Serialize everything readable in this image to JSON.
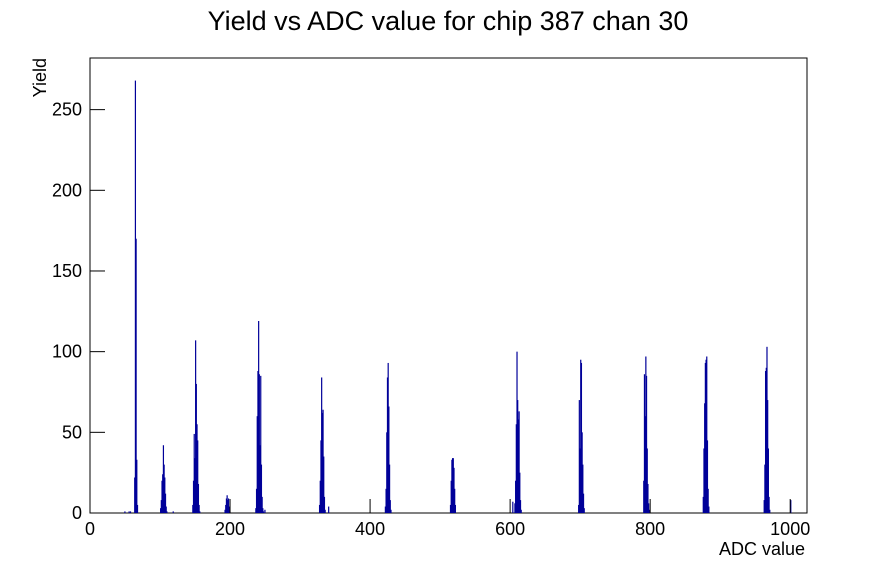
{
  "chart_data": {
    "type": "bar",
    "title": "Yield vs ADC value for chip 387 chan 30",
    "x_label": "ADC value",
    "y_label": "Yield",
    "color": "#000099",
    "xlim": [
      0,
      1024
    ],
    "xticks": [
      0,
      200,
      400,
      600,
      800,
      1000
    ],
    "ylim": [
      0,
      282
    ],
    "yticks": [
      0,
      50,
      100,
      150,
      200,
      250
    ],
    "x": [
      49,
      55,
      57,
      63,
      64,
      65,
      66,
      67,
      100,
      101,
      102,
      103,
      104,
      105,
      106,
      107,
      108,
      109,
      118,
      146,
      147,
      148,
      149,
      150,
      151,
      152,
      153,
      154,
      155,
      156,
      192,
      193,
      194,
      195,
      196,
      197,
      198,
      199,
      236,
      237,
      238,
      239,
      240,
      241,
      242,
      243,
      244,
      245,
      246,
      247,
      249,
      327,
      328,
      329,
      330,
      331,
      332,
      333,
      334,
      335,
      340,
      421,
      422,
      423,
      424,
      425,
      426,
      427,
      428,
      429,
      514,
      515,
      516,
      517,
      518,
      519,
      520,
      521,
      603,
      606,
      607,
      608,
      609,
      610,
      611,
      612,
      613,
      614,
      615,
      697,
      698,
      699,
      700,
      701,
      702,
      703,
      704,
      705,
      790,
      791,
      792,
      793,
      794,
      795,
      796,
      797,
      798,
      875,
      876,
      877,
      878,
      879,
      880,
      881,
      882,
      883,
      962,
      963,
      964,
      965,
      966,
      967,
      968,
      969,
      970,
      1000
    ],
    "values": [
      1,
      1,
      1,
      22,
      268,
      170,
      33,
      5,
      3,
      8,
      20,
      24,
      42,
      30,
      22,
      12,
      4,
      1,
      1,
      5,
      20,
      49,
      34,
      107,
      80,
      55,
      45,
      18,
      5,
      1,
      2,
      5,
      9,
      11,
      8,
      9,
      4,
      1,
      3,
      15,
      60,
      88,
      119,
      86,
      42,
      85,
      30,
      10,
      3,
      1,
      2,
      5,
      20,
      45,
      84,
      62,
      64,
      35,
      10,
      2,
      4,
      4,
      15,
      50,
      84,
      93,
      66,
      30,
      8,
      2,
      5,
      20,
      33,
      34,
      34,
      28,
      15,
      5,
      7,
      6,
      20,
      55,
      100,
      70,
      58,
      63,
      25,
      8,
      2,
      5,
      70,
      40,
      95,
      93,
      50,
      30,
      12,
      3,
      20,
      86,
      60,
      97,
      85,
      40,
      18,
      6,
      2,
      10,
      40,
      68,
      93,
      95,
      97,
      45,
      15,
      4,
      8,
      30,
      88,
      90,
      103,
      70,
      40,
      10,
      2,
      8
    ]
  }
}
